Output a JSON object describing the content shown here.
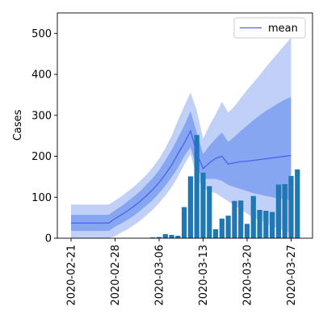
{
  "chart_data": {
    "type": "bar",
    "title": "",
    "xlabel": "",
    "ylabel": "Cases",
    "ylim": [
      0,
      550
    ],
    "grid": false,
    "legend": {
      "placement": "top-right",
      "entries": [
        "mean"
      ]
    },
    "x_tick_labels": [
      "2020-02-21",
      "2020-02-28",
      "2020-03-06",
      "2020-03-13",
      "2020-03-20",
      "2020-03-27"
    ],
    "y_ticks": [
      0,
      100,
      200,
      300,
      400,
      500
    ],
    "colors": {
      "bars": "#1f77b4",
      "mean_line": "#4a62f0",
      "inner_band": "#7c9ff0",
      "outer_band": "#b6c8f4"
    },
    "dates": [
      "2020-02-21",
      "2020-02-22",
      "2020-02-23",
      "2020-02-24",
      "2020-02-25",
      "2020-02-26",
      "2020-02-27",
      "2020-02-28",
      "2020-02-29",
      "2020-03-01",
      "2020-03-02",
      "2020-03-03",
      "2020-03-04",
      "2020-03-05",
      "2020-03-06",
      "2020-03-07",
      "2020-03-08",
      "2020-03-09",
      "2020-03-10",
      "2020-03-11",
      "2020-03-12",
      "2020-03-13",
      "2020-03-14",
      "2020-03-15",
      "2020-03-16",
      "2020-03-17",
      "2020-03-18",
      "2020-03-19",
      "2020-03-20",
      "2020-03-21",
      "2020-03-22",
      "2020-03-23",
      "2020-03-24",
      "2020-03-25",
      "2020-03-26",
      "2020-03-27",
      "2020-03-28"
    ],
    "series": [
      {
        "type": "bar",
        "values": [
          0,
          0,
          0,
          0,
          0,
          0,
          0,
          0,
          0,
          0,
          0,
          0,
          0,
          2,
          3,
          10,
          8,
          6,
          76,
          151,
          252,
          160,
          127,
          22,
          48,
          55,
          91,
          92,
          35,
          103,
          69,
          67,
          64,
          131,
          132,
          152,
          168
        ]
      },
      {
        "type": "line",
        "name": "mean",
        "values": [
          37,
          37,
          37,
          37,
          37,
          37,
          37,
          48,
          57,
          67,
          78,
          90,
          104,
          119,
          136,
          156,
          179,
          206,
          232,
          262,
          208,
          170,
          184,
          195,
          200,
          181,
          184,
          187,
          188,
          190,
          192,
          194,
          196,
          198,
          200,
          202,
          null
        ]
      },
      {
        "type": "band",
        "lower": [
          18,
          18,
          18,
          18,
          18,
          18,
          18,
          28,
          36,
          45,
          55,
          67,
          80,
          93,
          110,
          128,
          149,
          172,
          200,
          222,
          172,
          145,
          145,
          145,
          140,
          130,
          125,
          120,
          115,
          110,
          107,
          103,
          100,
          97,
          95,
          92,
          null
        ],
        "upper": [
          57,
          57,
          57,
          57,
          57,
          57,
          57,
          68,
          78,
          90,
          102,
          115,
          131,
          147,
          166,
          190,
          215,
          245,
          275,
          310,
          258,
          205,
          226,
          243,
          258,
          235,
          248,
          262,
          275,
          288,
          300,
          311,
          320,
          330,
          338,
          345,
          null
        ]
      },
      {
        "type": "band",
        "lower": [
          0,
          0,
          0,
          0,
          0,
          0,
          0,
          5,
          14,
          22,
          32,
          43,
          56,
          70,
          86,
          104,
          125,
          150,
          180,
          205,
          150,
          120,
          115,
          110,
          100,
          90,
          80,
          70,
          60,
          50,
          44,
          38,
          30,
          24,
          18,
          12,
          null
        ],
        "upper": [
          82,
          82,
          82,
          82,
          82,
          82,
          82,
          92,
          102,
          114,
          126,
          140,
          155,
          173,
          194,
          220,
          250,
          287,
          322,
          356,
          312,
          243,
          275,
          302,
          333,
          307,
          322,
          342,
          362,
          380,
          398,
          418,
          436,
          454,
          472,
          490,
          null
        ]
      }
    ]
  }
}
